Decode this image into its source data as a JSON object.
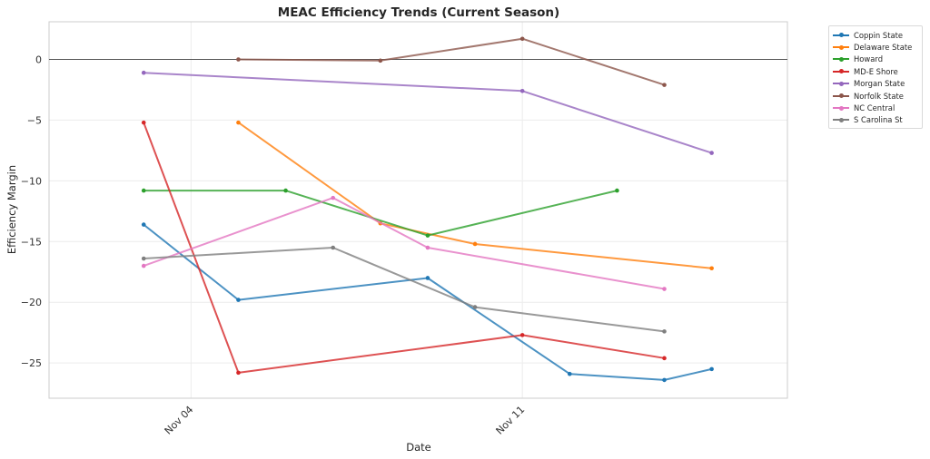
{
  "chart_data": {
    "type": "line",
    "title": "MEAC Efficiency Trends (Current Season)",
    "xlabel": "Date",
    "ylabel": "Efficiency Margin",
    "x_ticks": [
      {
        "label": "Nov 04",
        "day": 4
      },
      {
        "label": "Nov 11",
        "day": 11
      }
    ],
    "y_ticks": [
      0,
      -5,
      -10,
      -15,
      -20,
      -25
    ],
    "xlim_days": [
      1.0,
      16.6
    ],
    "ylim": [
      -27.9,
      3.1
    ],
    "grid": true,
    "reference_line_y": 0,
    "legend_position": "outside-top-right",
    "x_unit": "day of November",
    "series": [
      {
        "name": "Coppin State",
        "color": "#1f77b4",
        "points": [
          [
            3,
            -13.6
          ],
          [
            5,
            -19.8
          ],
          [
            9,
            -18.0
          ],
          [
            12,
            -25.9
          ],
          [
            14,
            -26.4
          ],
          [
            15,
            -25.5
          ]
        ]
      },
      {
        "name": "Delaware State",
        "color": "#ff7f0e",
        "points": [
          [
            5,
            -5.2
          ],
          [
            8,
            -13.5
          ],
          [
            10,
            -15.2
          ],
          [
            15,
            -17.2
          ]
        ]
      },
      {
        "name": "Howard",
        "color": "#2ca02c",
        "points": [
          [
            3,
            -10.8
          ],
          [
            6,
            -10.8
          ],
          [
            9,
            -14.5
          ],
          [
            13,
            -10.8
          ]
        ]
      },
      {
        "name": "MD-E Shore",
        "color": "#d62728",
        "points": [
          [
            3,
            -5.2
          ],
          [
            5,
            -25.8
          ],
          [
            11,
            -22.7
          ],
          [
            14,
            -24.6
          ]
        ]
      },
      {
        "name": "Morgan State",
        "color": "#9467bd",
        "points": [
          [
            3,
            -1.1
          ],
          [
            11,
            -2.6
          ],
          [
            15,
            -7.7
          ]
        ]
      },
      {
        "name": "Norfolk State",
        "color": "#8c564b",
        "points": [
          [
            5,
            0.0
          ],
          [
            8,
            -0.1
          ],
          [
            11,
            1.7
          ],
          [
            14,
            -2.1
          ]
        ]
      },
      {
        "name": "NC Central",
        "color": "#e377c2",
        "points": [
          [
            3,
            -17.0
          ],
          [
            7,
            -11.4
          ],
          [
            9,
            -15.5
          ],
          [
            14,
            -18.9
          ]
        ]
      },
      {
        "name": "S Carolina St",
        "color": "#7f7f7f",
        "points": [
          [
            3,
            -16.4
          ],
          [
            7,
            -15.5
          ],
          [
            10,
            -20.4
          ],
          [
            14,
            -22.4
          ]
        ]
      }
    ]
  }
}
